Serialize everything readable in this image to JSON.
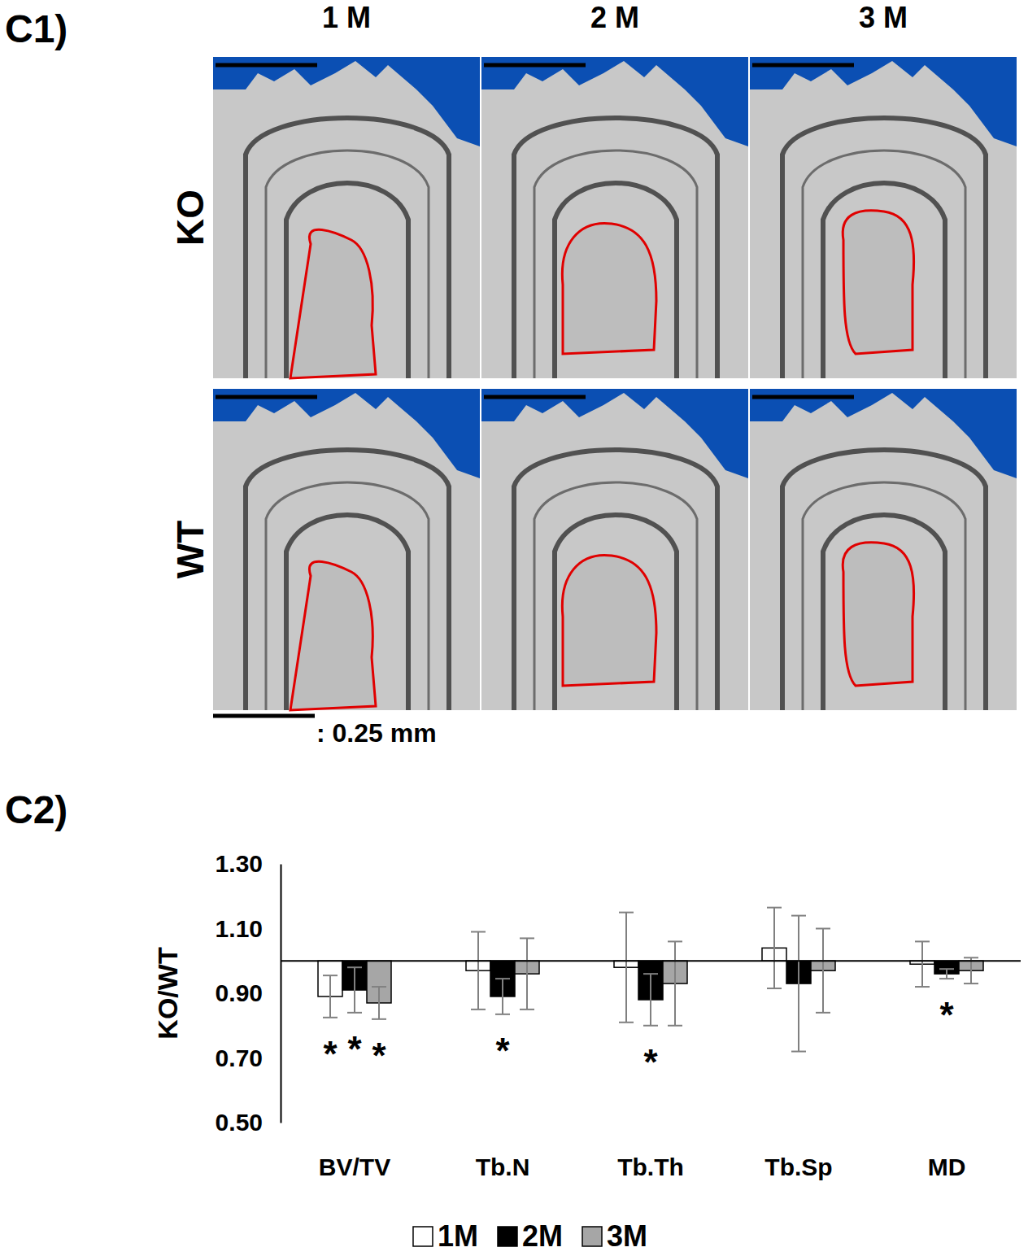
{
  "panel_c1": {
    "label": "C1)",
    "columns": [
      "1 M",
      "2 M",
      "3 M"
    ],
    "rows": [
      "KO",
      "WT"
    ],
    "scale_bar_label": ": 0.25 mm"
  },
  "chart_data": {
    "type": "bar",
    "title": "C2)",
    "y_label": "KO/WT",
    "categories": [
      "BV/TV",
      "Tb.N",
      "Tb.Th",
      "Tb.Sp",
      "MD"
    ],
    "baseline": 1,
    "series": [
      {
        "name": "1M",
        "color": "#ffffff",
        "values": [
          0.89,
          0.97,
          0.98,
          1.04,
          0.99
        ],
        "errors": [
          0.065,
          0.12,
          0.17,
          0.125,
          0.07
        ],
        "significance": [
          "*",
          null,
          null,
          null,
          null
        ]
      },
      {
        "name": "2M",
        "color": "#000000",
        "values": [
          0.91,
          0.89,
          0.88,
          0.93,
          0.96
        ],
        "errors": [
          0.07,
          0.055,
          0.08,
          0.21,
          0.015
        ],
        "significance": [
          "*",
          "*",
          "*",
          null,
          "*"
        ]
      },
      {
        "name": "3M",
        "color": "#a6a6a6",
        "values": [
          0.87,
          0.96,
          0.93,
          0.97,
          0.97
        ],
        "errors": [
          0.05,
          0.11,
          0.13,
          0.13,
          0.04
        ],
        "significance": [
          "*",
          null,
          null,
          null,
          null
        ]
      }
    ],
    "ylim": [
      0.5,
      1.3
    ],
    "yticks": [
      {
        "value": 0.5,
        "label": "0.50"
      },
      {
        "value": 0.7,
        "label": "0.70"
      },
      {
        "value": 0.9,
        "label": "0.90"
      },
      {
        "value": 1.1,
        "label": "1.10"
      },
      {
        "value": 1.3,
        "label": "1.30"
      }
    ],
    "grid": false,
    "legend": "bottom"
  }
}
